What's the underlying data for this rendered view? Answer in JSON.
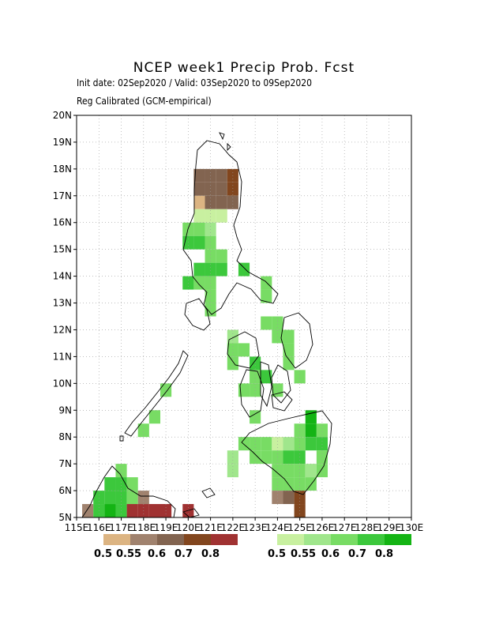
{
  "header": {
    "title": "NCEP week1 Precip Prob. Fcst",
    "line1": "Init date: 02Sep2020 / Valid: 03Sep2020 to 09Sep2020",
    "line2": "Reg Calibrated (GCM-empirical)"
  },
  "axes": {
    "lon_labels": [
      "115E",
      "116E",
      "117E",
      "118E",
      "119E",
      "120E",
      "121E",
      "122E",
      "123E",
      "124E",
      "125E",
      "126E",
      "127E",
      "128E",
      "129E",
      "130E"
    ],
    "lat_labels": [
      "5N",
      "6N",
      "7N",
      "8N",
      "9N",
      "10N",
      "11N",
      "12N",
      "13N",
      "14N",
      "15N",
      "16N",
      "17N",
      "18N",
      "19N",
      "20N"
    ],
    "lon_range": [
      115,
      130
    ],
    "lat_range": [
      5,
      20
    ],
    "grid": "dotted"
  },
  "legend": {
    "dry": {
      "labels": [
        "0.5",
        "0.55",
        "0.6",
        "0.7",
        "0.8"
      ],
      "colors": [
        "#dcb482",
        "#a0826e",
        "#826450",
        "#82461e",
        "#a03232"
      ]
    },
    "wet": {
      "labels": [
        "0.5",
        "0.55",
        "0.6",
        "0.7",
        "0.8"
      ],
      "colors": [
        "#c8f0a0",
        "#a0e68c",
        "#78dc64",
        "#3cc83c",
        "#14b414"
      ]
    }
  },
  "chart_data": {
    "type": "heatmap",
    "units": "probability",
    "cell_size_deg": 0.5,
    "cells": [
      {
        "lon": 120.5,
        "lat": 17.75,
        "cat": "dry3"
      },
      {
        "lon": 121.0,
        "lat": 17.75,
        "cat": "dry3"
      },
      {
        "lon": 121.5,
        "lat": 17.75,
        "cat": "dry3"
      },
      {
        "lon": 122.0,
        "lat": 17.75,
        "cat": "dry4"
      },
      {
        "lon": 120.5,
        "lat": 17.25,
        "cat": "dry3"
      },
      {
        "lon": 121.0,
        "lat": 17.25,
        "cat": "dry3"
      },
      {
        "lon": 121.5,
        "lat": 17.25,
        "cat": "dry3"
      },
      {
        "lon": 122.0,
        "lat": 17.25,
        "cat": "dry4"
      },
      {
        "lon": 120.5,
        "lat": 16.75,
        "cat": "dry1"
      },
      {
        "lon": 121.0,
        "lat": 16.75,
        "cat": "dry3"
      },
      {
        "lon": 121.5,
        "lat": 16.75,
        "cat": "dry3"
      },
      {
        "lon": 122.0,
        "lat": 16.75,
        "cat": "dry3"
      },
      {
        "lon": 120.5,
        "lat": 16.25,
        "cat": "wet1"
      },
      {
        "lon": 121.0,
        "lat": 16.25,
        "cat": "wet1"
      },
      {
        "lon": 121.5,
        "lat": 16.25,
        "cat": "wet1"
      },
      {
        "lon": 120.0,
        "lat": 15.75,
        "cat": "wet3"
      },
      {
        "lon": 120.5,
        "lat": 15.75,
        "cat": "wet3"
      },
      {
        "lon": 121.0,
        "lat": 15.75,
        "cat": "wet2"
      },
      {
        "lon": 120.0,
        "lat": 15.25,
        "cat": "wet4"
      },
      {
        "lon": 120.5,
        "lat": 15.25,
        "cat": "wet4"
      },
      {
        "lon": 121.0,
        "lat": 15.25,
        "cat": "wet3"
      },
      {
        "lon": 121.0,
        "lat": 14.75,
        "cat": "wet3"
      },
      {
        "lon": 121.5,
        "lat": 14.75,
        "cat": "wet3"
      },
      {
        "lon": 120.5,
        "lat": 14.25,
        "cat": "wet4"
      },
      {
        "lon": 121.0,
        "lat": 14.25,
        "cat": "wet4"
      },
      {
        "lon": 121.5,
        "lat": 14.25,
        "cat": "wet4"
      },
      {
        "lon": 122.5,
        "lat": 14.25,
        "cat": "wet4"
      },
      {
        "lon": 120.0,
        "lat": 13.75,
        "cat": "wet4"
      },
      {
        "lon": 120.5,
        "lat": 13.75,
        "cat": "wet3"
      },
      {
        "lon": 121.0,
        "lat": 13.75,
        "cat": "wet3"
      },
      {
        "lon": 123.5,
        "lat": 13.75,
        "cat": "wet3"
      },
      {
        "lon": 121.0,
        "lat": 13.25,
        "cat": "wet3"
      },
      {
        "lon": 123.5,
        "lat": 13.25,
        "cat": "wet3"
      },
      {
        "lon": 121.0,
        "lat": 12.75,
        "cat": "wet3"
      },
      {
        "lon": 123.5,
        "lat": 12.25,
        "cat": "wet3"
      },
      {
        "lon": 124.0,
        "lat": 12.25,
        "cat": "wet3"
      },
      {
        "lon": 122.0,
        "lat": 11.75,
        "cat": "wet2"
      },
      {
        "lon": 124.0,
        "lat": 11.75,
        "cat": "wet3"
      },
      {
        "lon": 124.5,
        "lat": 11.75,
        "cat": "wet3"
      },
      {
        "lon": 122.0,
        "lat": 11.25,
        "cat": "wet3"
      },
      {
        "lon": 122.5,
        "lat": 11.25,
        "cat": "wet3"
      },
      {
        "lon": 124.5,
        "lat": 11.25,
        "cat": "wet3"
      },
      {
        "lon": 122.0,
        "lat": 10.75,
        "cat": "wet3"
      },
      {
        "lon": 123.0,
        "lat": 10.75,
        "cat": "wet4"
      },
      {
        "lon": 124.5,
        "lat": 10.75,
        "cat": "wet3"
      },
      {
        "lon": 123.0,
        "lat": 10.25,
        "cat": "wet3"
      },
      {
        "lon": 123.5,
        "lat": 10.25,
        "cat": "wet4"
      },
      {
        "lon": 125.0,
        "lat": 10.25,
        "cat": "wet3"
      },
      {
        "lon": 119.0,
        "lat": 9.75,
        "cat": "wet3"
      },
      {
        "lon": 122.5,
        "lat": 9.75,
        "cat": "wet3"
      },
      {
        "lon": 123.0,
        "lat": 9.75,
        "cat": "wet3"
      },
      {
        "lon": 124.0,
        "lat": 9.75,
        "cat": "wet3"
      },
      {
        "lon": 118.5,
        "lat": 8.75,
        "cat": "wet3"
      },
      {
        "lon": 123.0,
        "lat": 8.75,
        "cat": "wet3"
      },
      {
        "lon": 125.5,
        "lat": 8.75,
        "cat": "wet5"
      },
      {
        "lon": 118.0,
        "lat": 8.25,
        "cat": "wet3"
      },
      {
        "lon": 125.0,
        "lat": 8.25,
        "cat": "wet3"
      },
      {
        "lon": 125.5,
        "lat": 8.25,
        "cat": "wet5"
      },
      {
        "lon": 126.0,
        "lat": 8.25,
        "cat": "wet3"
      },
      {
        "lon": 122.5,
        "lat": 7.75,
        "cat": "wet3"
      },
      {
        "lon": 123.0,
        "lat": 7.75,
        "cat": "wet3"
      },
      {
        "lon": 123.5,
        "lat": 7.75,
        "cat": "wet3"
      },
      {
        "lon": 124.0,
        "lat": 7.75,
        "cat": "wet1"
      },
      {
        "lon": 124.5,
        "lat": 7.75,
        "cat": "wet2"
      },
      {
        "lon": 125.0,
        "lat": 7.75,
        "cat": "wet3"
      },
      {
        "lon": 125.5,
        "lat": 7.75,
        "cat": "wet4"
      },
      {
        "lon": 126.0,
        "lat": 7.75,
        "cat": "wet4"
      },
      {
        "lon": 122.0,
        "lat": 7.25,
        "cat": "wet2"
      },
      {
        "lon": 123.0,
        "lat": 7.25,
        "cat": "wet3"
      },
      {
        "lon": 123.5,
        "lat": 7.25,
        "cat": "wet3"
      },
      {
        "lon": 124.0,
        "lat": 7.25,
        "cat": "wet3"
      },
      {
        "lon": 124.5,
        "lat": 7.25,
        "cat": "wet4"
      },
      {
        "lon": 125.0,
        "lat": 7.25,
        "cat": "wet4"
      },
      {
        "lon": 126.0,
        "lat": 7.25,
        "cat": "wet3"
      },
      {
        "lon": 117.0,
        "lat": 6.75,
        "cat": "wet3"
      },
      {
        "lon": 122.0,
        "lat": 6.75,
        "cat": "wet2"
      },
      {
        "lon": 124.0,
        "lat": 6.75,
        "cat": "wet3"
      },
      {
        "lon": 124.5,
        "lat": 6.75,
        "cat": "wet3"
      },
      {
        "lon": 125.0,
        "lat": 6.75,
        "cat": "wet3"
      },
      {
        "lon": 125.5,
        "lat": 6.75,
        "cat": "wet2"
      },
      {
        "lon": 126.0,
        "lat": 6.75,
        "cat": "wet3"
      },
      {
        "lon": 116.5,
        "lat": 6.25,
        "cat": "wet4"
      },
      {
        "lon": 117.0,
        "lat": 6.25,
        "cat": "wet4"
      },
      {
        "lon": 117.5,
        "lat": 6.25,
        "cat": "wet3"
      },
      {
        "lon": 124.0,
        "lat": 6.25,
        "cat": "wet3"
      },
      {
        "lon": 124.5,
        "lat": 6.25,
        "cat": "wet3"
      },
      {
        "lon": 125.0,
        "lat": 6.25,
        "cat": "wet3"
      },
      {
        "lon": 125.5,
        "lat": 6.25,
        "cat": "wet3"
      },
      {
        "lon": 116.0,
        "lat": 5.75,
        "cat": "wet4"
      },
      {
        "lon": 116.5,
        "lat": 5.75,
        "cat": "wet4"
      },
      {
        "lon": 117.0,
        "lat": 5.75,
        "cat": "wet4"
      },
      {
        "lon": 117.5,
        "lat": 5.75,
        "cat": "wet3"
      },
      {
        "lon": 118.0,
        "lat": 5.75,
        "cat": "dry2"
      },
      {
        "lon": 124.0,
        "lat": 5.75,
        "cat": "dry2"
      },
      {
        "lon": 124.5,
        "lat": 5.75,
        "cat": "dry3"
      },
      {
        "lon": 125.0,
        "lat": 5.75,
        "cat": "dry4"
      },
      {
        "lon": 115.5,
        "lat": 5.25,
        "cat": "dry2"
      },
      {
        "lon": 116.0,
        "lat": 5.25,
        "cat": "wet4"
      },
      {
        "lon": 116.5,
        "lat": 5.25,
        "cat": "wet5"
      },
      {
        "lon": 117.0,
        "lat": 5.25,
        "cat": "wet4"
      },
      {
        "lon": 117.5,
        "lat": 5.25,
        "cat": "dry5"
      },
      {
        "lon": 118.0,
        "lat": 5.25,
        "cat": "dry5"
      },
      {
        "lon": 118.5,
        "lat": 5.25,
        "cat": "dry5"
      },
      {
        "lon": 119.0,
        "lat": 5.25,
        "cat": "dry5"
      },
      {
        "lon": 120.0,
        "lat": 5.25,
        "cat": "dry5"
      },
      {
        "lon": 125.0,
        "lat": 5.25,
        "cat": "dry4"
      }
    ]
  }
}
